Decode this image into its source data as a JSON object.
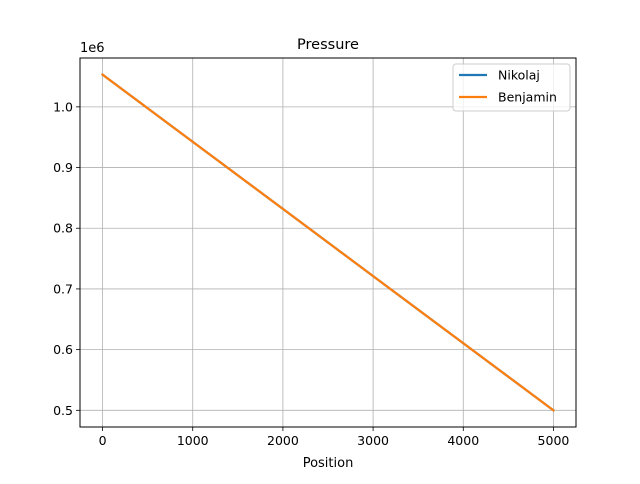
{
  "chart_data": {
    "type": "line",
    "title": "Pressure",
    "xlabel": "Position",
    "ylabel": "",
    "y_offset_label": "1e6",
    "xlim": [
      -250,
      5250
    ],
    "ylim": [
      0.4725,
      1.0805
    ],
    "xticks": [
      0,
      1000,
      2000,
      3000,
      4000,
      5000
    ],
    "xtick_labels": [
      "0",
      "1000",
      "2000",
      "3000",
      "4000",
      "5000"
    ],
    "yticks": [
      0.5,
      0.6,
      0.7,
      0.8,
      0.9,
      1.0
    ],
    "ytick_labels": [
      "0.5",
      "0.6",
      "0.7",
      "0.8",
      "0.9",
      "1.0"
    ],
    "grid": true,
    "legend_position": "top-right",
    "series": [
      {
        "name": "Nikolaj",
        "color": "#1f77b4",
        "x": [
          0,
          5000
        ],
        "y": [
          1.053,
          0.5
        ]
      },
      {
        "name": "Benjamin",
        "color": "#ff7f0e",
        "x": [
          0,
          5000
        ],
        "y": [
          1.053,
          0.5
        ]
      }
    ]
  }
}
